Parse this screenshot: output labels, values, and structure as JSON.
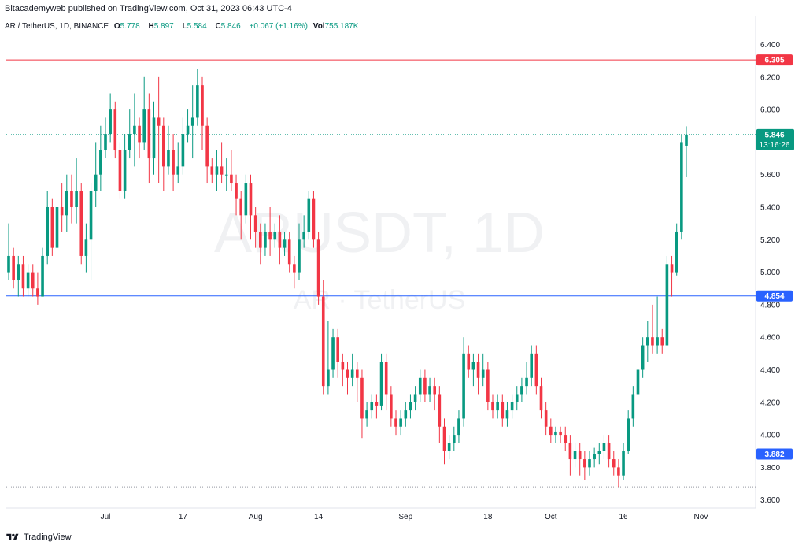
{
  "header": "Bitacademyweb published on TradingView.com, Oct 31, 2023 06:43 UTC-4",
  "symbol_line": {
    "name": "AR / TetherUS, 1D, BINANCE",
    "o_label": "O",
    "o": "5.778",
    "h_label": "H",
    "h": "5.897",
    "l_label": "L",
    "l": "5.584",
    "c_label": "C",
    "c": "5.846",
    "change": "+0.067 (+1.16%)",
    "vol_label": "Vol",
    "vol": "755.187K"
  },
  "watermark": {
    "main": "ARUSDT, 1D",
    "sub": "AR · TetherUS"
  },
  "footer": {
    "brand": "TradingView"
  },
  "colors": {
    "up": "#089981",
    "down": "#f23645",
    "red_line": "#f23645",
    "blue_line": "#2962ff"
  },
  "chart_data": {
    "type": "candlestick",
    "ylim": [
      3.55,
      6.48
    ],
    "y_ticks": [
      "6.400",
      "6.200",
      "6.000",
      "5.600",
      "5.400",
      "5.200",
      "5.000",
      "4.800",
      "4.600",
      "4.400",
      "4.200",
      "4.000",
      "3.800",
      "3.600"
    ],
    "x_tick_labels": [
      {
        "label": "Jul",
        "index": 20
      },
      {
        "label": "17",
        "index": 36
      },
      {
        "label": "Aug",
        "index": 51
      },
      {
        "label": "14",
        "index": 64
      },
      {
        "label": "Sep",
        "index": 82
      },
      {
        "label": "18",
        "index": 99
      },
      {
        "label": "Oct",
        "index": 112
      },
      {
        "label": "16",
        "index": 127
      },
      {
        "label": "Nov",
        "index": 143
      }
    ],
    "price_lines": [
      {
        "value": 6.305,
        "label": "6.305",
        "color": "red"
      },
      {
        "value": 4.854,
        "label": "4.854",
        "color": "blue"
      },
      {
        "value": 3.882,
        "label": "3.882",
        "color": "blue",
        "start_index": 90
      }
    ],
    "last_price": {
      "value": 5.846,
      "label": "5.846",
      "countdown": "13:16:26"
    },
    "candles": [
      [
        5.0,
        5.1,
        4.95,
        5.3
      ],
      [
        5.1,
        4.95,
        4.9,
        5.15
      ],
      [
        4.95,
        5.05,
        4.85,
        5.1
      ],
      [
        5.05,
        4.9,
        4.85,
        5.1
      ],
      [
        4.9,
        5.0,
        4.85,
        5.05
      ],
      [
        5.0,
        4.9,
        4.85,
        5.05
      ],
      [
        4.9,
        4.85,
        4.8,
        5.0
      ],
      [
        4.85,
        5.1,
        4.85,
        5.15
      ],
      [
        5.1,
        5.4,
        5.05,
        5.5
      ],
      [
        5.4,
        5.15,
        5.1,
        5.45
      ],
      [
        5.15,
        5.4,
        5.05,
        5.5
      ],
      [
        5.4,
        5.35,
        5.25,
        5.55
      ],
      [
        5.35,
        5.5,
        5.25,
        5.6
      ],
      [
        5.5,
        5.4,
        5.3,
        5.6
      ],
      [
        5.4,
        5.5,
        5.3,
        5.7
      ],
      [
        5.5,
        5.1,
        5.05,
        5.55
      ],
      [
        5.1,
        5.2,
        5.0,
        5.3
      ],
      [
        5.2,
        5.5,
        4.95,
        5.55
      ],
      [
        5.5,
        5.6,
        5.4,
        5.8
      ],
      [
        5.6,
        5.75,
        5.5,
        5.9
      ],
      [
        5.75,
        5.85,
        5.7,
        5.95
      ],
      [
        5.85,
        6.0,
        5.8,
        6.1
      ],
      [
        6.0,
        5.75,
        5.7,
        6.05
      ],
      [
        5.75,
        5.5,
        5.45,
        5.8
      ],
      [
        5.5,
        5.75,
        5.45,
        5.85
      ],
      [
        5.75,
        5.85,
        5.7,
        6.0
      ],
      [
        5.85,
        5.9,
        5.65,
        6.1
      ],
      [
        5.9,
        5.8,
        5.7,
        5.95
      ],
      [
        5.8,
        6.0,
        5.75,
        6.2
      ],
      [
        6.0,
        5.7,
        5.55,
        6.1
      ],
      [
        5.7,
        5.95,
        5.6,
        6.05
      ],
      [
        5.95,
        5.9,
        5.55,
        6.2
      ],
      [
        5.9,
        5.65,
        5.5,
        5.95
      ],
      [
        5.65,
        5.75,
        5.6,
        5.9
      ],
      [
        5.75,
        5.6,
        5.5,
        5.85
      ],
      [
        5.6,
        5.65,
        5.55,
        5.8
      ],
      [
        5.65,
        5.85,
        5.6,
        5.95
      ],
      [
        5.85,
        5.9,
        5.8,
        6.0
      ],
      [
        5.9,
        5.95,
        5.7,
        6.15
      ],
      [
        5.95,
        6.15,
        5.9,
        6.25
      ],
      [
        6.15,
        5.9,
        5.75,
        6.2
      ],
      [
        5.9,
        5.65,
        5.55,
        5.95
      ],
      [
        5.65,
        5.6,
        5.55,
        5.7
      ],
      [
        5.6,
        5.65,
        5.5,
        5.75
      ],
      [
        5.65,
        5.6,
        5.55,
        5.8
      ],
      [
        5.6,
        5.6,
        5.5,
        5.7
      ],
      [
        5.6,
        5.55,
        5.5,
        5.75
      ],
      [
        5.55,
        5.45,
        5.35,
        5.6
      ],
      [
        5.45,
        5.35,
        5.2,
        5.5
      ],
      [
        5.35,
        5.55,
        5.3,
        5.6
      ],
      [
        5.55,
        5.35,
        5.2,
        5.6
      ],
      [
        5.35,
        5.25,
        5.15,
        5.4
      ],
      [
        5.25,
        5.15,
        5.05,
        5.3
      ],
      [
        5.15,
        5.25,
        5.1,
        5.3
      ],
      [
        5.25,
        5.2,
        5.1,
        5.4
      ],
      [
        5.2,
        5.25,
        5.15,
        5.3
      ],
      [
        5.25,
        5.15,
        5.05,
        5.35
      ],
      [
        5.15,
        5.2,
        5.1,
        5.25
      ],
      [
        5.2,
        5.05,
        5.0,
        5.25
      ],
      [
        5.05,
        5.0,
        4.9,
        5.1
      ],
      [
        5.0,
        5.2,
        4.95,
        5.3
      ],
      [
        5.2,
        5.25,
        5.15,
        5.35
      ],
      [
        5.25,
        5.45,
        5.2,
        5.5
      ],
      [
        5.45,
        5.2,
        5.15,
        5.5
      ],
      [
        5.2,
        4.85,
        4.8,
        5.25
      ],
      [
        4.85,
        4.3,
        4.25,
        4.95
      ],
      [
        4.3,
        4.4,
        4.25,
        4.7
      ],
      [
        4.4,
        4.6,
        4.35,
        4.65
      ],
      [
        4.6,
        4.45,
        4.35,
        4.65
      ],
      [
        4.45,
        4.4,
        4.3,
        4.5
      ],
      [
        4.4,
        4.35,
        4.25,
        4.45
      ],
      [
        4.35,
        4.4,
        4.3,
        4.5
      ],
      [
        4.4,
        4.35,
        4.2,
        4.45
      ],
      [
        4.35,
        4.1,
        3.98,
        4.4
      ],
      [
        4.1,
        4.15,
        4.05,
        4.2
      ],
      [
        4.15,
        4.2,
        4.1,
        4.25
      ],
      [
        4.2,
        4.18,
        4.1,
        4.25
      ],
      [
        4.18,
        4.45,
        4.15,
        4.5
      ],
      [
        4.45,
        4.25,
        4.15,
        4.5
      ],
      [
        4.25,
        4.1,
        4.05,
        4.3
      ],
      [
        4.1,
        4.05,
        4.0,
        4.15
      ],
      [
        4.05,
        4.1,
        4.0,
        4.15
      ],
      [
        4.1,
        4.15,
        4.05,
        4.2
      ],
      [
        4.15,
        4.2,
        4.1,
        4.25
      ],
      [
        4.2,
        4.25,
        4.15,
        4.3
      ],
      [
        4.25,
        4.35,
        4.2,
        4.4
      ],
      [
        4.35,
        4.25,
        4.2,
        4.4
      ],
      [
        4.25,
        4.3,
        4.2,
        4.35
      ],
      [
        4.3,
        4.25,
        4.15,
        4.35
      ],
      [
        4.25,
        4.05,
        3.95,
        4.3
      ],
      [
        4.05,
        3.9,
        3.82,
        4.1
      ],
      [
        3.9,
        3.95,
        3.85,
        4.0
      ],
      [
        3.95,
        4.0,
        3.9,
        4.05
      ],
      [
        4.0,
        4.1,
        3.95,
        4.15
      ],
      [
        4.1,
        4.5,
        4.05,
        4.6
      ],
      [
        4.5,
        4.4,
        4.35,
        4.55
      ],
      [
        4.4,
        4.45,
        4.3,
        4.5
      ],
      [
        4.45,
        4.35,
        4.25,
        4.5
      ],
      [
        4.35,
        4.4,
        4.3,
        4.5
      ],
      [
        4.4,
        4.2,
        4.15,
        4.45
      ],
      [
        4.2,
        4.15,
        4.1,
        4.25
      ],
      [
        4.15,
        4.2,
        4.1,
        4.25
      ],
      [
        4.2,
        4.1,
        4.05,
        4.25
      ],
      [
        4.1,
        4.15,
        4.05,
        4.2
      ],
      [
        4.15,
        4.2,
        4.1,
        4.25
      ],
      [
        4.2,
        4.25,
        4.15,
        4.3
      ],
      [
        4.25,
        4.3,
        4.2,
        4.35
      ],
      [
        4.3,
        4.35,
        4.25,
        4.45
      ],
      [
        4.35,
        4.5,
        4.3,
        4.55
      ],
      [
        4.5,
        4.3,
        4.25,
        4.55
      ],
      [
        4.3,
        4.15,
        4.1,
        4.35
      ],
      [
        4.15,
        4.05,
        4.0,
        4.2
      ],
      [
        4.05,
        4.0,
        3.95,
        4.1
      ],
      [
        4.0,
        4.02,
        3.95,
        4.05
      ],
      [
        4.02,
        4.0,
        3.95,
        4.05
      ],
      [
        4.0,
        3.95,
        3.9,
        4.05
      ],
      [
        3.95,
        3.85,
        3.75,
        4.0
      ],
      [
        3.85,
        3.9,
        3.8,
        3.95
      ],
      [
        3.9,
        3.85,
        3.75,
        3.95
      ],
      [
        3.85,
        3.8,
        3.72,
        3.9
      ],
      [
        3.8,
        3.85,
        3.75,
        3.9
      ],
      [
        3.85,
        3.88,
        3.8,
        3.92
      ],
      [
        3.88,
        3.9,
        3.82,
        3.95
      ],
      [
        3.9,
        3.95,
        3.85,
        4.0
      ],
      [
        3.95,
        3.85,
        3.8,
        4.0
      ],
      [
        3.85,
        3.8,
        3.75,
        3.9
      ],
      [
        3.8,
        3.75,
        3.68,
        3.85
      ],
      [
        3.75,
        3.9,
        3.72,
        3.95
      ],
      [
        3.9,
        4.1,
        3.88,
        4.15
      ],
      [
        4.1,
        4.25,
        4.05,
        4.3
      ],
      [
        4.25,
        4.4,
        4.2,
        4.5
      ],
      [
        4.4,
        4.55,
        4.35,
        4.6
      ],
      [
        4.55,
        4.6,
        4.45,
        4.7
      ],
      [
        4.6,
        4.55,
        4.5,
        4.8
      ],
      [
        4.55,
        4.6,
        4.5,
        4.85
      ],
      [
        4.6,
        4.55,
        4.5,
        4.65
      ],
      [
        4.55,
        5.05,
        4.55,
        5.1
      ],
      [
        5.05,
        5.0,
        4.85,
        5.1
      ],
      [
        5.0,
        5.25,
        4.98,
        5.3
      ],
      [
        5.25,
        5.8,
        5.2,
        5.85
      ],
      [
        5.778,
        5.846,
        5.584,
        5.897
      ]
    ]
  }
}
